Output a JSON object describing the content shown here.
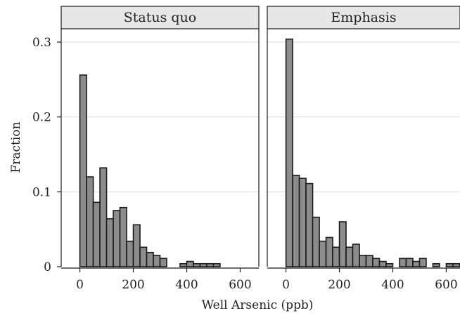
{
  "chart_data": {
    "type": "bar",
    "xlabel": "Well Arsenic (ppb)",
    "ylabel": "Fraction",
    "xlim": [
      -70,
      670
    ],
    "ylim": [
      0,
      0.3
    ],
    "x_ticks": [
      0,
      200,
      400,
      600
    ],
    "y_ticks": [
      0,
      0.1,
      0.2,
      0.3
    ],
    "y_tick_labels": [
      "0",
      "0.1",
      "0.2",
      "0.3"
    ],
    "grid": true,
    "bin_width": 25,
    "bar_color": "#8c8c8c",
    "bar_edge_color": "#1a1a1a",
    "strip_color": "#e6e6e6",
    "panels": [
      {
        "title": "Status quo",
        "bins": [
          {
            "x": 0,
            "y": 0.256
          },
          {
            "x": 25,
            "y": 0.12
          },
          {
            "x": 50,
            "y": 0.086
          },
          {
            "x": 75,
            "y": 0.132
          },
          {
            "x": 100,
            "y": 0.064
          },
          {
            "x": 125,
            "y": 0.075
          },
          {
            "x": 150,
            "y": 0.079
          },
          {
            "x": 175,
            "y": 0.034
          },
          {
            "x": 200,
            "y": 0.056
          },
          {
            "x": 225,
            "y": 0.026
          },
          {
            "x": 250,
            "y": 0.019
          },
          {
            "x": 275,
            "y": 0.015
          },
          {
            "x": 300,
            "y": 0.011
          },
          {
            "x": 375,
            "y": 0.004
          },
          {
            "x": 400,
            "y": 0.007
          },
          {
            "x": 425,
            "y": 0.004
          },
          {
            "x": 450,
            "y": 0.004
          },
          {
            "x": 475,
            "y": 0.004
          },
          {
            "x": 500,
            "y": 0.004
          }
        ]
      },
      {
        "title": "Emphasis",
        "bins": [
          {
            "x": 0,
            "y": 0.304
          },
          {
            "x": 25,
            "y": 0.122
          },
          {
            "x": 50,
            "y": 0.118
          },
          {
            "x": 75,
            "y": 0.111
          },
          {
            "x": 100,
            "y": 0.066
          },
          {
            "x": 125,
            "y": 0.034
          },
          {
            "x": 150,
            "y": 0.039
          },
          {
            "x": 175,
            "y": 0.026
          },
          {
            "x": 200,
            "y": 0.06
          },
          {
            "x": 225,
            "y": 0.026
          },
          {
            "x": 250,
            "y": 0.03
          },
          {
            "x": 275,
            "y": 0.015
          },
          {
            "x": 300,
            "y": 0.015
          },
          {
            "x": 325,
            "y": 0.011
          },
          {
            "x": 350,
            "y": 0.007
          },
          {
            "x": 375,
            "y": 0.004
          },
          {
            "x": 425,
            "y": 0.011
          },
          {
            "x": 450,
            "y": 0.011
          },
          {
            "x": 475,
            "y": 0.007
          },
          {
            "x": 500,
            "y": 0.011
          },
          {
            "x": 550,
            "y": 0.004
          },
          {
            "x": 600,
            "y": 0.004
          },
          {
            "x": 625,
            "y": 0.004
          }
        ]
      }
    ]
  }
}
